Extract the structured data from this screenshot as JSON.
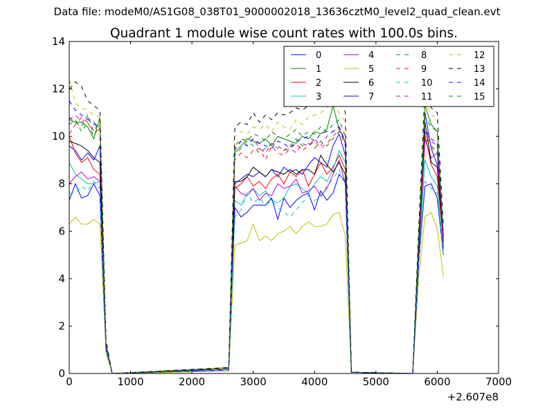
{
  "chart_data": {
    "type": "line",
    "suptitle": "Data file: modeM0/AS1G08_038T01_9000002018_13636cztM0_level2_quad_clean.evt",
    "title": "Quadrant 1 module wise count rates with 100.0s bins.",
    "xlabel": "",
    "ylabel": "",
    "x_offset_label": "+2.607e8",
    "xlim": [
      0,
      7000
    ],
    "ylim": [
      0,
      14
    ],
    "xticks": [
      0,
      1000,
      2000,
      3000,
      4000,
      5000,
      6000,
      7000
    ],
    "xtick_labels": [
      "0",
      "1000",
      "2000",
      "3000",
      "4000",
      "5000",
      "6000",
      "7000"
    ],
    "yticks": [
      0,
      2,
      4,
      6,
      8,
      10,
      12,
      14
    ],
    "ytick_labels": [
      "0",
      "2",
      "4",
      "6",
      "8",
      "10",
      "12",
      "14"
    ],
    "grid": false,
    "legend_placement": "top-right",
    "legend_columns": 4,
    "x": [
      0,
      100,
      200,
      300,
      400,
      500,
      600,
      700,
      2600,
      2700,
      2800,
      2900,
      3000,
      3100,
      3200,
      3300,
      3400,
      3500,
      3600,
      3700,
      3800,
      3900,
      4000,
      4100,
      4200,
      4300,
      4400,
      4500,
      4600,
      5600,
      5700,
      5800,
      5900,
      6000,
      6100
    ],
    "series": [
      {
        "name": "0",
        "color": "#0000ff",
        "style": "solid",
        "values": [
          9.6,
          9.4,
          9.0,
          9.3,
          9.0,
          9.6,
          1.2,
          0,
          0.2,
          8.0,
          8.2,
          8.4,
          8.3,
          8.5,
          8.3,
          8.6,
          8.3,
          8.7,
          8.5,
          8.6,
          8.4,
          8.8,
          9.1,
          8.9,
          8.7,
          9.6,
          10.1,
          9.2,
          0.05,
          0,
          5.5,
          11.0,
          9.5,
          8.8,
          5.5
        ]
      },
      {
        "name": "1",
        "color": "#008000",
        "style": "solid",
        "values": [
          10.7,
          10.6,
          10.6,
          10.4,
          9.9,
          10.8,
          1.3,
          0,
          0.25,
          9.3,
          9.6,
          9.9,
          9.8,
          9.7,
          9.9,
          9.6,
          10.0,
          9.9,
          9.8,
          9.7,
          10.0,
          9.9,
          10.2,
          10.1,
          10.3,
          11.3,
          10.3,
          9.8,
          0.05,
          0,
          6.0,
          11.3,
          10.5,
          10.2,
          5.8
        ]
      },
      {
        "name": "2",
        "color": "#ff0000",
        "style": "solid",
        "values": [
          10.0,
          9.3,
          8.9,
          9.1,
          8.6,
          8.4,
          1.1,
          0,
          0.2,
          7.8,
          8.0,
          8.3,
          7.9,
          8.1,
          7.8,
          8.2,
          8.4,
          8.0,
          8.5,
          8.3,
          8.6,
          7.9,
          8.4,
          8.9,
          8.4,
          8.7,
          9.2,
          8.6,
          0.05,
          0,
          5.2,
          10.1,
          8.8,
          8.3,
          5.6
        ]
      },
      {
        "name": "3",
        "color": "#00bfbf",
        "style": "solid",
        "values": [
          8.9,
          8.4,
          8.2,
          8.0,
          8.0,
          8.1,
          1.0,
          0,
          0.15,
          7.3,
          7.1,
          7.6,
          7.8,
          7.5,
          7.7,
          7.3,
          7.2,
          7.4,
          7.9,
          8.0,
          7.8,
          7.6,
          8.0,
          8.3,
          8.1,
          8.6,
          9.4,
          8.9,
          0.05,
          0,
          5.0,
          9.0,
          8.3,
          7.9,
          5.2
        ]
      },
      {
        "name": "4",
        "color": "#bf00bf",
        "style": "solid",
        "values": [
          8.0,
          8.3,
          8.5,
          8.2,
          8.3,
          8.1,
          1.0,
          0,
          0.15,
          7.9,
          7.6,
          7.5,
          7.8,
          7.3,
          7.6,
          7.5,
          8.0,
          7.8,
          7.9,
          8.2,
          7.6,
          7.7,
          7.9,
          7.5,
          7.8,
          8.4,
          9.0,
          8.0,
          0.05,
          0,
          5.1,
          9.9,
          9.1,
          9.3,
          5.3
        ]
      },
      {
        "name": "5",
        "color": "#bfbf00",
        "style": "solid",
        "values": [
          6.3,
          6.6,
          6.3,
          6.3,
          6.5,
          6.3,
          0.9,
          0,
          0.1,
          5.4,
          5.5,
          5.6,
          6.3,
          5.6,
          5.8,
          5.6,
          5.9,
          6.0,
          6.2,
          5.9,
          6.2,
          6.4,
          6.2,
          6.2,
          6.3,
          6.7,
          6.8,
          5.8,
          0.05,
          0,
          4.2,
          6.6,
          6.8,
          6.1,
          4.1
        ]
      },
      {
        "name": "6",
        "color": "#000000",
        "style": "solid",
        "values": [
          9.8,
          9.7,
          9.6,
          9.4,
          9.1,
          8.9,
          1.2,
          0,
          0.2,
          8.1,
          8.1,
          8.3,
          8.7,
          8.5,
          8.3,
          8.6,
          8.5,
          8.4,
          8.6,
          8.4,
          8.6,
          8.6,
          8.4,
          9.2,
          8.8,
          8.5,
          8.9,
          8.4,
          0.05,
          0,
          5.3,
          10.6,
          8.9,
          8.7,
          5.7
        ]
      },
      {
        "name": "7",
        "color": "#0000ff",
        "style": "solid",
        "values": [
          7.3,
          8.0,
          7.4,
          7.5,
          8.0,
          7.5,
          1.0,
          0,
          0.15,
          7.0,
          6.6,
          6.8,
          7.1,
          7.1,
          7.1,
          7.4,
          6.5,
          7.4,
          7.0,
          7.3,
          7.5,
          7.6,
          6.9,
          7.7,
          7.3,
          7.6,
          8.4,
          8.1,
          0.05,
          0,
          4.8,
          7.9,
          8.0,
          7.4,
          5.0
        ]
      },
      {
        "name": "8",
        "color": "#008000",
        "style": "dashed",
        "values": [
          10.5,
          10.7,
          10.2,
          10.6,
          10.0,
          10.5,
          1.2,
          0,
          0.2,
          9.2,
          9.5,
          9.8,
          9.6,
          9.3,
          9.5,
          9.7,
          9.5,
          9.4,
          9.6,
          9.9,
          9.6,
          9.7,
          9.5,
          9.8,
          9.6,
          9.9,
          10.2,
          9.7,
          0.05,
          0,
          5.6,
          10.2,
          9.6,
          9.4,
          5.6
        ]
      },
      {
        "name": "9",
        "color": "#ff0000",
        "style": "dashed",
        "values": [
          10.1,
          10.5,
          10.8,
          10.6,
          10.2,
          10.3,
          1.2,
          0,
          0.2,
          9.0,
          9.3,
          9.1,
          9.4,
          9.5,
          9.0,
          9.6,
          9.3,
          9.2,
          9.5,
          9.7,
          9.4,
          9.6,
          9.8,
          9.5,
          9.7,
          10.0,
          10.3,
          9.6,
          0.05,
          0,
          5.5,
          10.0,
          9.5,
          9.4,
          5.6
        ]
      },
      {
        "name": "10",
        "color": "#00bfbf",
        "style": "dashed",
        "values": [
          7.6,
          7.6,
          7.9,
          7.7,
          8.1,
          7.8,
          1.0,
          0,
          0.15,
          6.6,
          6.9,
          7.6,
          7.2,
          7.4,
          7.1,
          7.3,
          7.0,
          6.8,
          6.6,
          6.9,
          7.2,
          7.5,
          7.3,
          7.4,
          7.9,
          8.2,
          8.6,
          7.9,
          0.05,
          0,
          4.9,
          8.1,
          7.8,
          7.6,
          5.0
        ]
      },
      {
        "name": "11",
        "color": "#bf00bf",
        "style": "dashed",
        "values": [
          10.7,
          10.9,
          10.6,
          10.8,
          10.5,
          10.4,
          1.2,
          0,
          0.2,
          9.4,
          9.8,
          9.6,
          9.9,
          9.5,
          9.3,
          9.7,
          9.6,
          9.4,
          9.5,
          9.3,
          9.7,
          9.6,
          9.9,
          9.6,
          10.0,
          10.2,
          10.4,
          9.7,
          0.05,
          0,
          5.6,
          10.2,
          9.8,
          9.6,
          5.7
        ]
      },
      {
        "name": "12",
        "color": "#bfbf00",
        "style": "dashed",
        "values": [
          12.4,
          11.4,
          11.2,
          11.1,
          10.9,
          10.8,
          1.3,
          0,
          0.25,
          10.0,
          10.2,
          10.1,
          10.4,
          10.3,
          10.5,
          10.2,
          10.6,
          10.4,
          10.3,
          10.7,
          10.5,
          10.8,
          10.9,
          11.0,
          11.2,
          11.4,
          11.0,
          10.6,
          0.05,
          0,
          6.0,
          11.5,
          10.9,
          10.8,
          6.0
        ]
      },
      {
        "name": "13",
        "color": "#000000",
        "style": "dashed",
        "values": [
          12.0,
          12.3,
          12.1,
          11.5,
          11.3,
          11.1,
          1.4,
          0,
          0.25,
          10.4,
          10.6,
          10.5,
          11.0,
          10.6,
          10.9,
          10.7,
          11.0,
          10.9,
          11.0,
          11.2,
          11.1,
          11.3,
          11.4,
          11.6,
          11.9,
          12.1,
          12.0,
          11.0,
          0.05,
          0,
          6.3,
          12.1,
          11.2,
          11.0,
          6.2
        ]
      },
      {
        "name": "14",
        "color": "#0000ff",
        "style": "dashed",
        "values": [
          11.5,
          11.1,
          10.9,
          10.7,
          10.6,
          10.3,
          1.2,
          0,
          0.2,
          9.5,
          9.8,
          9.6,
          9.9,
          9.7,
          9.6,
          9.5,
          9.8,
          9.7,
          9.5,
          9.8,
          9.9,
          10.0,
          9.8,
          10.1,
          10.2,
          10.2,
          10.4,
          9.8,
          0.05,
          0,
          5.7,
          10.3,
          9.9,
          9.7,
          5.8
        ]
      },
      {
        "name": "15",
        "color": "#008000",
        "style": "dashed",
        "values": [
          10.8,
          10.6,
          10.4,
          10.9,
          10.2,
          10.7,
          1.2,
          0,
          0.2,
          9.6,
          9.9,
          9.8,
          10.1,
          10.0,
          9.8,
          10.2,
          10.0,
          9.9,
          10.1,
          10.3,
          10.0,
          10.2,
          10.1,
          10.4,
          10.2,
          10.5,
          10.7,
          10.0,
          0.05,
          0,
          5.9,
          10.8,
          10.4,
          10.2,
          5.9
        ]
      }
    ]
  }
}
